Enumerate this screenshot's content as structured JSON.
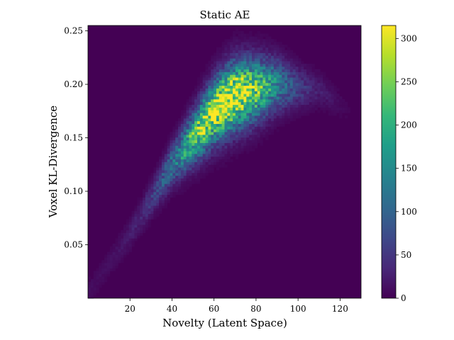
{
  "chart_data": {
    "type": "heatmap",
    "title": "Static AE",
    "xlabel": "Novelty (Latent Space)",
    "ylabel": "Voxel KL-Divergence",
    "xlim": [
      0,
      130
    ],
    "ylim": [
      0,
      0.255
    ],
    "x_ticks": [
      "20",
      "40",
      "60",
      "80",
      "100",
      "120"
    ],
    "x_tick_values": [
      20,
      40,
      60,
      80,
      100,
      120
    ],
    "y_ticks": [
      "0.05",
      "0.10",
      "0.15",
      "0.20",
      "0.25"
    ],
    "y_tick_values": [
      0.05,
      0.1,
      0.15,
      0.2,
      0.25
    ],
    "colorbar": {
      "min": 0,
      "max": 315,
      "ticks": [
        "0",
        "50",
        "100",
        "150",
        "200",
        "250",
        "300"
      ],
      "tick_values": [
        0,
        50,
        100,
        150,
        200,
        250,
        300
      ],
      "colormap": "viridis"
    },
    "bins": [
      100,
      100
    ],
    "density_model": {
      "ridge_points": [
        {
          "x": 0,
          "y": 0.005
        },
        {
          "x": 20,
          "y": 0.06
        },
        {
          "x": 40,
          "y": 0.125
        },
        {
          "x": 60,
          "y": 0.175
        },
        {
          "x": 70,
          "y": 0.19
        },
        {
          "x": 90,
          "y": 0.2
        },
        {
          "x": 110,
          "y": 0.195
        },
        {
          "x": 125,
          "y": 0.175
        }
      ],
      "peak": {
        "x": 66,
        "y": 0.188,
        "count": 315
      }
    },
    "grid": false
  }
}
